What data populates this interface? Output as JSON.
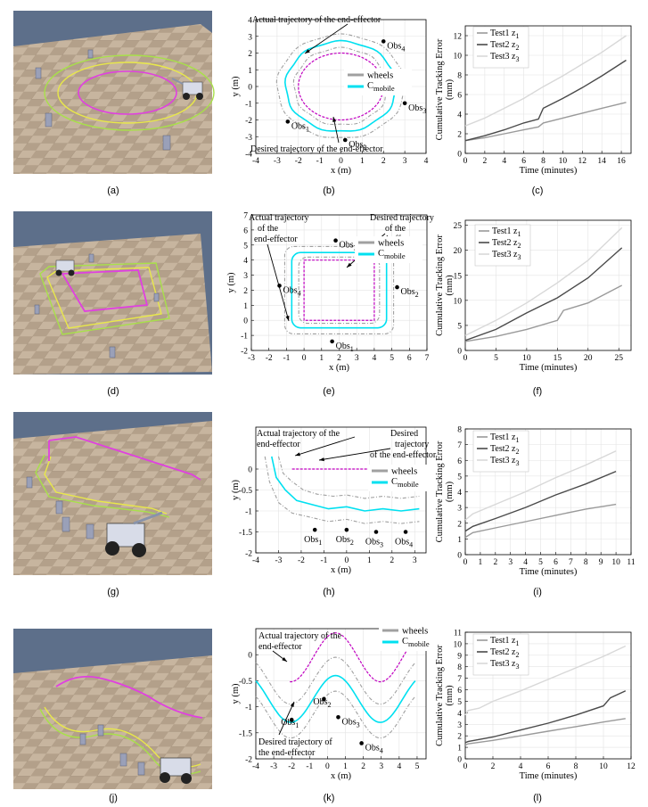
{
  "captions": [
    "(a)",
    "(b)",
    "(c)",
    "(d)",
    "(e)",
    "(f)",
    "(g)",
    "(h)",
    "(i)",
    "(j)",
    "(k)",
    "(l)"
  ],
  "colors": {
    "wheels": "#a0a0a0",
    "mobile": "#00e0f0",
    "ee": "#c000c0",
    "test1": "#9a9a9a",
    "test2": "#4a4a4a",
    "test3": "#d8d8d8",
    "floor_a": "#c9b8a6",
    "floor_b": "#b5a390",
    "sky": "#5d6f8a",
    "green_path": "#a8e04a",
    "yellow_path": "#e8e84a",
    "magenta_path": "#e040e0"
  },
  "sim_scenes": [
    {
      "id": "a",
      "path": "circle"
    },
    {
      "id": "d",
      "path": "square"
    },
    {
      "id": "g",
      "path": "line"
    },
    {
      "id": "j",
      "path": "sine"
    }
  ],
  "chart_data": [
    {
      "id": "b",
      "type": "line",
      "xlabel": "x (m)",
      "ylabel": "y (m)",
      "xlim": [
        -4,
        4
      ],
      "ylim": [
        -4,
        4
      ],
      "xticks": [
        -4,
        -3,
        -2,
        -1,
        0,
        1,
        2,
        3,
        4
      ],
      "yticks": [
        -4,
        -3,
        -2,
        -1,
        0,
        1,
        2,
        3,
        4
      ],
      "legend": [
        {
          "label": "wheels"
        },
        {
          "label": "C",
          "sub": "mobile"
        }
      ],
      "annotations": [
        {
          "text": "Actual trajectory of the end-effector"
        },
        {
          "text": "Desired trajectory of the end-effector"
        }
      ],
      "obstacles": [
        {
          "name": "Obs",
          "sub": "4",
          "x": 2.0,
          "y": 2.7
        },
        {
          "name": "Obs",
          "sub": "3",
          "x": 3.0,
          "y": -1.0
        },
        {
          "name": "Obs",
          "sub": "2",
          "x": 0.2,
          "y": -3.2
        },
        {
          "name": "Obs",
          "sub": "1",
          "x": -2.5,
          "y": -2.1
        }
      ],
      "shape": "circle",
      "desired_trajectory": {
        "cx": 0,
        "cy": 0,
        "rx": 2.0,
        "ry": 2.0
      },
      "mobile_trajectory": {
        "cx": 0,
        "cy": 0,
        "rx": 2.6,
        "ry": 2.7
      },
      "wheels_paths": [
        {
          "cx": 0,
          "cy": 0,
          "rx": 3.0,
          "ry": 3.1
        },
        {
          "cx": 0,
          "cy": 0,
          "rx": 2.2,
          "ry": 2.3
        }
      ]
    },
    {
      "id": "c",
      "type": "line",
      "xlabel": "Time (minutes)",
      "ylabel": "Cumulative Tracking Error\n(mm)",
      "xlim": [
        0,
        17
      ],
      "ylim": [
        0,
        13
      ],
      "xticks": [
        0,
        2,
        4,
        6,
        8,
        10,
        12,
        14,
        16
      ],
      "yticks": [
        0,
        2,
        4,
        6,
        8,
        10,
        12
      ],
      "legend": [
        {
          "label": "Test1 z",
          "sub": "1"
        },
        {
          "label": "Test2 z",
          "sub": "2"
        },
        {
          "label": "Test3 z",
          "sub": "3"
        }
      ],
      "series": [
        {
          "name": "Test1 z1",
          "x": [
            0,
            2,
            4,
            6,
            7.5,
            8,
            10,
            12,
            14,
            16.5
          ],
          "y": [
            1.3,
            1.6,
            2.0,
            2.4,
            2.7,
            3.1,
            3.6,
            4.1,
            4.6,
            5.2
          ]
        },
        {
          "name": "Test2 z2",
          "x": [
            0,
            2,
            4,
            6,
            7.5,
            8,
            10,
            12,
            14,
            16.5
          ],
          "y": [
            1.3,
            1.8,
            2.4,
            3.1,
            3.5,
            4.6,
            5.6,
            6.7,
            7.9,
            9.5
          ]
        },
        {
          "name": "Test3 z3",
          "x": [
            0,
            2,
            4,
            6,
            8,
            10,
            12,
            14,
            16.5
          ],
          "y": [
            2.8,
            3.6,
            4.6,
            5.6,
            6.8,
            7.9,
            9.1,
            10.3,
            12.0
          ]
        }
      ]
    },
    {
      "id": "e",
      "type": "line",
      "xlabel": "x (m)",
      "ylabel": "y (m)",
      "xlim": [
        -3,
        7
      ],
      "ylim": [
        -2,
        7
      ],
      "xticks": [
        -3,
        -2,
        -1,
        0,
        1,
        2,
        3,
        4,
        5,
        6,
        7
      ],
      "yticks": [
        -2,
        -1,
        0,
        1,
        2,
        3,
        4,
        5,
        6,
        7
      ],
      "legend": [
        {
          "label": "wheels"
        },
        {
          "label": "C",
          "sub": "mobile"
        }
      ],
      "annotations": [
        {
          "text": "Actual trajectory"
        },
        {
          "text": "of  the"
        },
        {
          "text": "end-effector"
        },
        {
          "text": "Desired trajectory"
        },
        {
          "text": "of the"
        },
        {
          "text": "end-effector"
        }
      ],
      "obstacles": [
        {
          "name": "Obs",
          "sub": "3",
          "x": 1.8,
          "y": 5.3
        },
        {
          "name": "Obs",
          "sub": "4",
          "x": -1.4,
          "y": 2.3
        },
        {
          "name": "Obs",
          "sub": "2",
          "x": 5.3,
          "y": 2.2
        },
        {
          "name": "Obs",
          "sub": "1",
          "x": 1.6,
          "y": -1.4
        }
      ],
      "shape": "square",
      "desired_trajectory": {
        "x0": 0,
        "y0": 0,
        "x1": 4,
        "y1": 4
      },
      "mobile_trajectory": {
        "x0": -0.7,
        "y0": -0.5,
        "x1": 4.7,
        "y1": 4.5
      },
      "wheels_paths": [
        {
          "x0": -1.1,
          "y0": -0.9,
          "x1": 5.1,
          "y1": 4.9
        },
        {
          "x0": -0.3,
          "y0": -0.2,
          "x1": 4.3,
          "y1": 4.2
        }
      ]
    },
    {
      "id": "f",
      "type": "line",
      "xlabel": "Time (minutes)",
      "ylabel": "Cumulative Tracking Error\n(mm)",
      "xlim": [
        0,
        27
      ],
      "ylim": [
        0,
        26
      ],
      "xticks": [
        0,
        5,
        10,
        15,
        20,
        25
      ],
      "yticks": [
        0,
        5,
        10,
        15,
        20,
        25
      ],
      "legend": [
        {
          "label": "Test1 z",
          "sub": "1"
        },
        {
          "label": "Test2 z",
          "sub": "2"
        },
        {
          "label": "Test3 z",
          "sub": "3"
        }
      ],
      "series": [
        {
          "name": "Test1 z1",
          "x": [
            0,
            5,
            10,
            15,
            16,
            20,
            25.5
          ],
          "y": [
            1.8,
            2.8,
            4.2,
            6.0,
            8.0,
            9.5,
            13.0
          ]
        },
        {
          "name": "Test2 z2",
          "x": [
            0,
            5,
            10,
            15,
            20,
            25.5
          ],
          "y": [
            2.0,
            4.2,
            7.5,
            10.5,
            14.5,
            20.5
          ]
        },
        {
          "name": "Test3 z3",
          "x": [
            0,
            5,
            10,
            15,
            20,
            25.5
          ],
          "y": [
            3.0,
            6.0,
            9.5,
            13.5,
            18.0,
            24.5
          ]
        }
      ]
    },
    {
      "id": "h",
      "type": "line",
      "xlabel": "x (m)",
      "ylabel": "y (m)",
      "xlim": [
        -4,
        3.5
      ],
      "ylim": [
        -2,
        1
      ],
      "xticks": [
        -4,
        -3,
        -2,
        -1,
        0,
        1,
        2,
        3
      ],
      "yticks": [
        -2,
        -1.5,
        -1,
        -0.5,
        0
      ],
      "legend": [
        {
          "label": "wheels"
        },
        {
          "label": "C",
          "sub": "mobile"
        }
      ],
      "annotations": [
        {
          "text": "Actual trajectory of the"
        },
        {
          "text": "end-effector"
        },
        {
          "text": "Desired"
        },
        {
          "text": "trajectory"
        },
        {
          "text": "of  the end-effector"
        }
      ],
      "obstacles": [
        {
          "name": "Obs",
          "sub": "1",
          "x": -1.4,
          "y": -1.45
        },
        {
          "name": "Obs",
          "sub": "2",
          "x": 0.0,
          "y": -1.45
        },
        {
          "name": "Obs",
          "sub": "3",
          "x": 1.3,
          "y": -1.5
        },
        {
          "name": "Obs",
          "sub": "4",
          "x": 2.6,
          "y": -1.5
        }
      ],
      "shape": "line",
      "desired_trajectory": {
        "x": [
          -2.4,
          3.0
        ],
        "y": [
          0,
          0
        ]
      },
      "mobile_trajectory": {
        "x": [
          -3.3,
          -3.1,
          -2.7,
          -2.2,
          -1.5,
          -0.8,
          0.0,
          0.8,
          1.6,
          2.4,
          3.2
        ],
        "y": [
          0.3,
          -0.2,
          -0.5,
          -0.75,
          -0.85,
          -0.95,
          -0.9,
          -1.0,
          -0.95,
          -1.0,
          -0.95
        ]
      },
      "wheels_paths": [
        {
          "x": [
            -3.6,
            -3.4,
            -3.0,
            -2.4,
            -1.6,
            -0.8,
            0.0,
            0.8,
            1.6,
            2.4,
            3.2
          ],
          "y": [
            0.3,
            -0.3,
            -0.8,
            -1.05,
            -1.15,
            -1.25,
            -1.2,
            -1.3,
            -1.25,
            -1.3,
            -1.25
          ]
        },
        {
          "x": [
            -3.0,
            -2.8,
            -2.4,
            -1.9,
            -1.3,
            -0.6,
            0.0,
            0.8,
            1.6,
            2.4,
            3.2
          ],
          "y": [
            0.3,
            -0.1,
            -0.3,
            -0.5,
            -0.6,
            -0.65,
            -0.62,
            -0.7,
            -0.65,
            -0.7,
            -0.65
          ]
        }
      ]
    },
    {
      "id": "i",
      "type": "line",
      "xlabel": "Time (minutes)",
      "ylabel": "Cumulative Tracking Error\n(mm)",
      "xlim": [
        0,
        11
      ],
      "ylim": [
        0,
        8
      ],
      "xticks": [
        0,
        1,
        2,
        3,
        4,
        5,
        6,
        7,
        8,
        9,
        10,
        11
      ],
      "yticks": [
        0,
        1,
        2,
        3,
        4,
        5,
        6,
        7,
        8
      ],
      "legend": [
        {
          "label": "Test1 z",
          "sub": "1"
        },
        {
          "label": "Test2 z",
          "sub": "2"
        },
        {
          "label": "Test3 z",
          "sub": "3"
        }
      ],
      "series": [
        {
          "name": "Test1 z1",
          "x": [
            0,
            0.5,
            2,
            4,
            6,
            8,
            10
          ],
          "y": [
            1.1,
            1.4,
            1.7,
            2.1,
            2.5,
            2.9,
            3.2
          ]
        },
        {
          "name": "Test2 z2",
          "x": [
            0,
            0.5,
            2,
            4,
            6,
            8,
            10
          ],
          "y": [
            1.5,
            1.8,
            2.3,
            3.0,
            3.8,
            4.5,
            5.3
          ]
        },
        {
          "name": "Test3 z3",
          "x": [
            0,
            0.5,
            2,
            4,
            6,
            8,
            10
          ],
          "y": [
            2.2,
            2.6,
            3.2,
            4.0,
            4.9,
            5.7,
            6.6
          ]
        }
      ]
    },
    {
      "id": "k",
      "type": "line",
      "xlabel": "x (m)",
      "ylabel": "y (m)",
      "xlim": [
        -4,
        5.5
      ],
      "ylim": [
        -2,
        0.5
      ],
      "xticks": [
        -4,
        -3,
        -2,
        -1,
        0,
        1,
        2,
        3,
        4,
        5
      ],
      "yticks": [
        -2,
        -1.5,
        -1,
        -0.5,
        0
      ],
      "legend": [
        {
          "label": "wheels"
        },
        {
          "label": "C",
          "sub": "mobile"
        }
      ],
      "annotations": [
        {
          "text": "Actual trajectory of the"
        },
        {
          "text": "end-effector"
        },
        {
          "text": "Desired trajectory of"
        },
        {
          "text": "the end-effector"
        }
      ],
      "obstacles": [
        {
          "name": "Obs",
          "sub": "1",
          "x": -2.0,
          "y": -1.25
        },
        {
          "name": "Obs",
          "sub": "2",
          "x": -0.2,
          "y": -0.85
        },
        {
          "name": "Obs",
          "sub": "3",
          "x": 0.6,
          "y": -1.2
        },
        {
          "name": "Obs",
          "sub": "4",
          "x": 1.9,
          "y": -1.7
        }
      ],
      "shape": "sine",
      "desired_trajectory": {
        "xstart": -2.1,
        "xend": 4.9,
        "amp": 0.47,
        "offset": -0.05,
        "period": 5.0,
        "phase": -0.8
      },
      "mobile_trajectory": {
        "xstart": -4.0,
        "xend": 4.9,
        "amp": 0.45,
        "offset": -0.85,
        "period": 5.0,
        "phase": -0.8
      },
      "wheels_paths": [
        {
          "xstart": -4.0,
          "xend": 4.9,
          "amp": 0.45,
          "offset": -1.15,
          "period": 5.0,
          "phase": -0.8
        },
        {
          "xstart": -4.0,
          "xend": 4.9,
          "amp": 0.45,
          "offset": -0.5,
          "period": 5.0,
          "phase": -0.8
        }
      ]
    },
    {
      "id": "l",
      "type": "line",
      "xlabel": "Time (minutes)",
      "ylabel": "Cumulative Tracking Error\n(mm)",
      "xlim": [
        0,
        12
      ],
      "ylim": [
        0,
        11
      ],
      "xticks": [
        0,
        2,
        4,
        6,
        8,
        10,
        12
      ],
      "yticks": [
        0,
        1,
        2,
        3,
        4,
        5,
        6,
        7,
        8,
        9,
        10,
        11
      ],
      "legend": [
        {
          "label": "Test1 z",
          "sub": "1"
        },
        {
          "label": "Test2 z",
          "sub": "2"
        },
        {
          "label": "Test3 z",
          "sub": "3"
        }
      ],
      "series": [
        {
          "name": "Test1 z1",
          "x": [
            0,
            0.2,
            2,
            4,
            6,
            8,
            10,
            11.6
          ],
          "y": [
            1.2,
            1.3,
            1.6,
            2.0,
            2.4,
            2.8,
            3.2,
            3.5
          ]
        },
        {
          "name": "Test2 z2",
          "x": [
            0,
            0.2,
            2,
            4,
            6,
            8,
            10,
            10.5,
            11.6
          ],
          "y": [
            1.4,
            1.5,
            1.9,
            2.5,
            3.1,
            3.8,
            4.6,
            5.3,
            5.9
          ]
        },
        {
          "name": "Test3 z3",
          "x": [
            0,
            0.2,
            1,
            2,
            4,
            6,
            8,
            10,
            11.6
          ],
          "y": [
            3.8,
            4.2,
            4.4,
            5.0,
            5.9,
            6.9,
            7.9,
            8.9,
            9.8
          ]
        }
      ]
    }
  ]
}
